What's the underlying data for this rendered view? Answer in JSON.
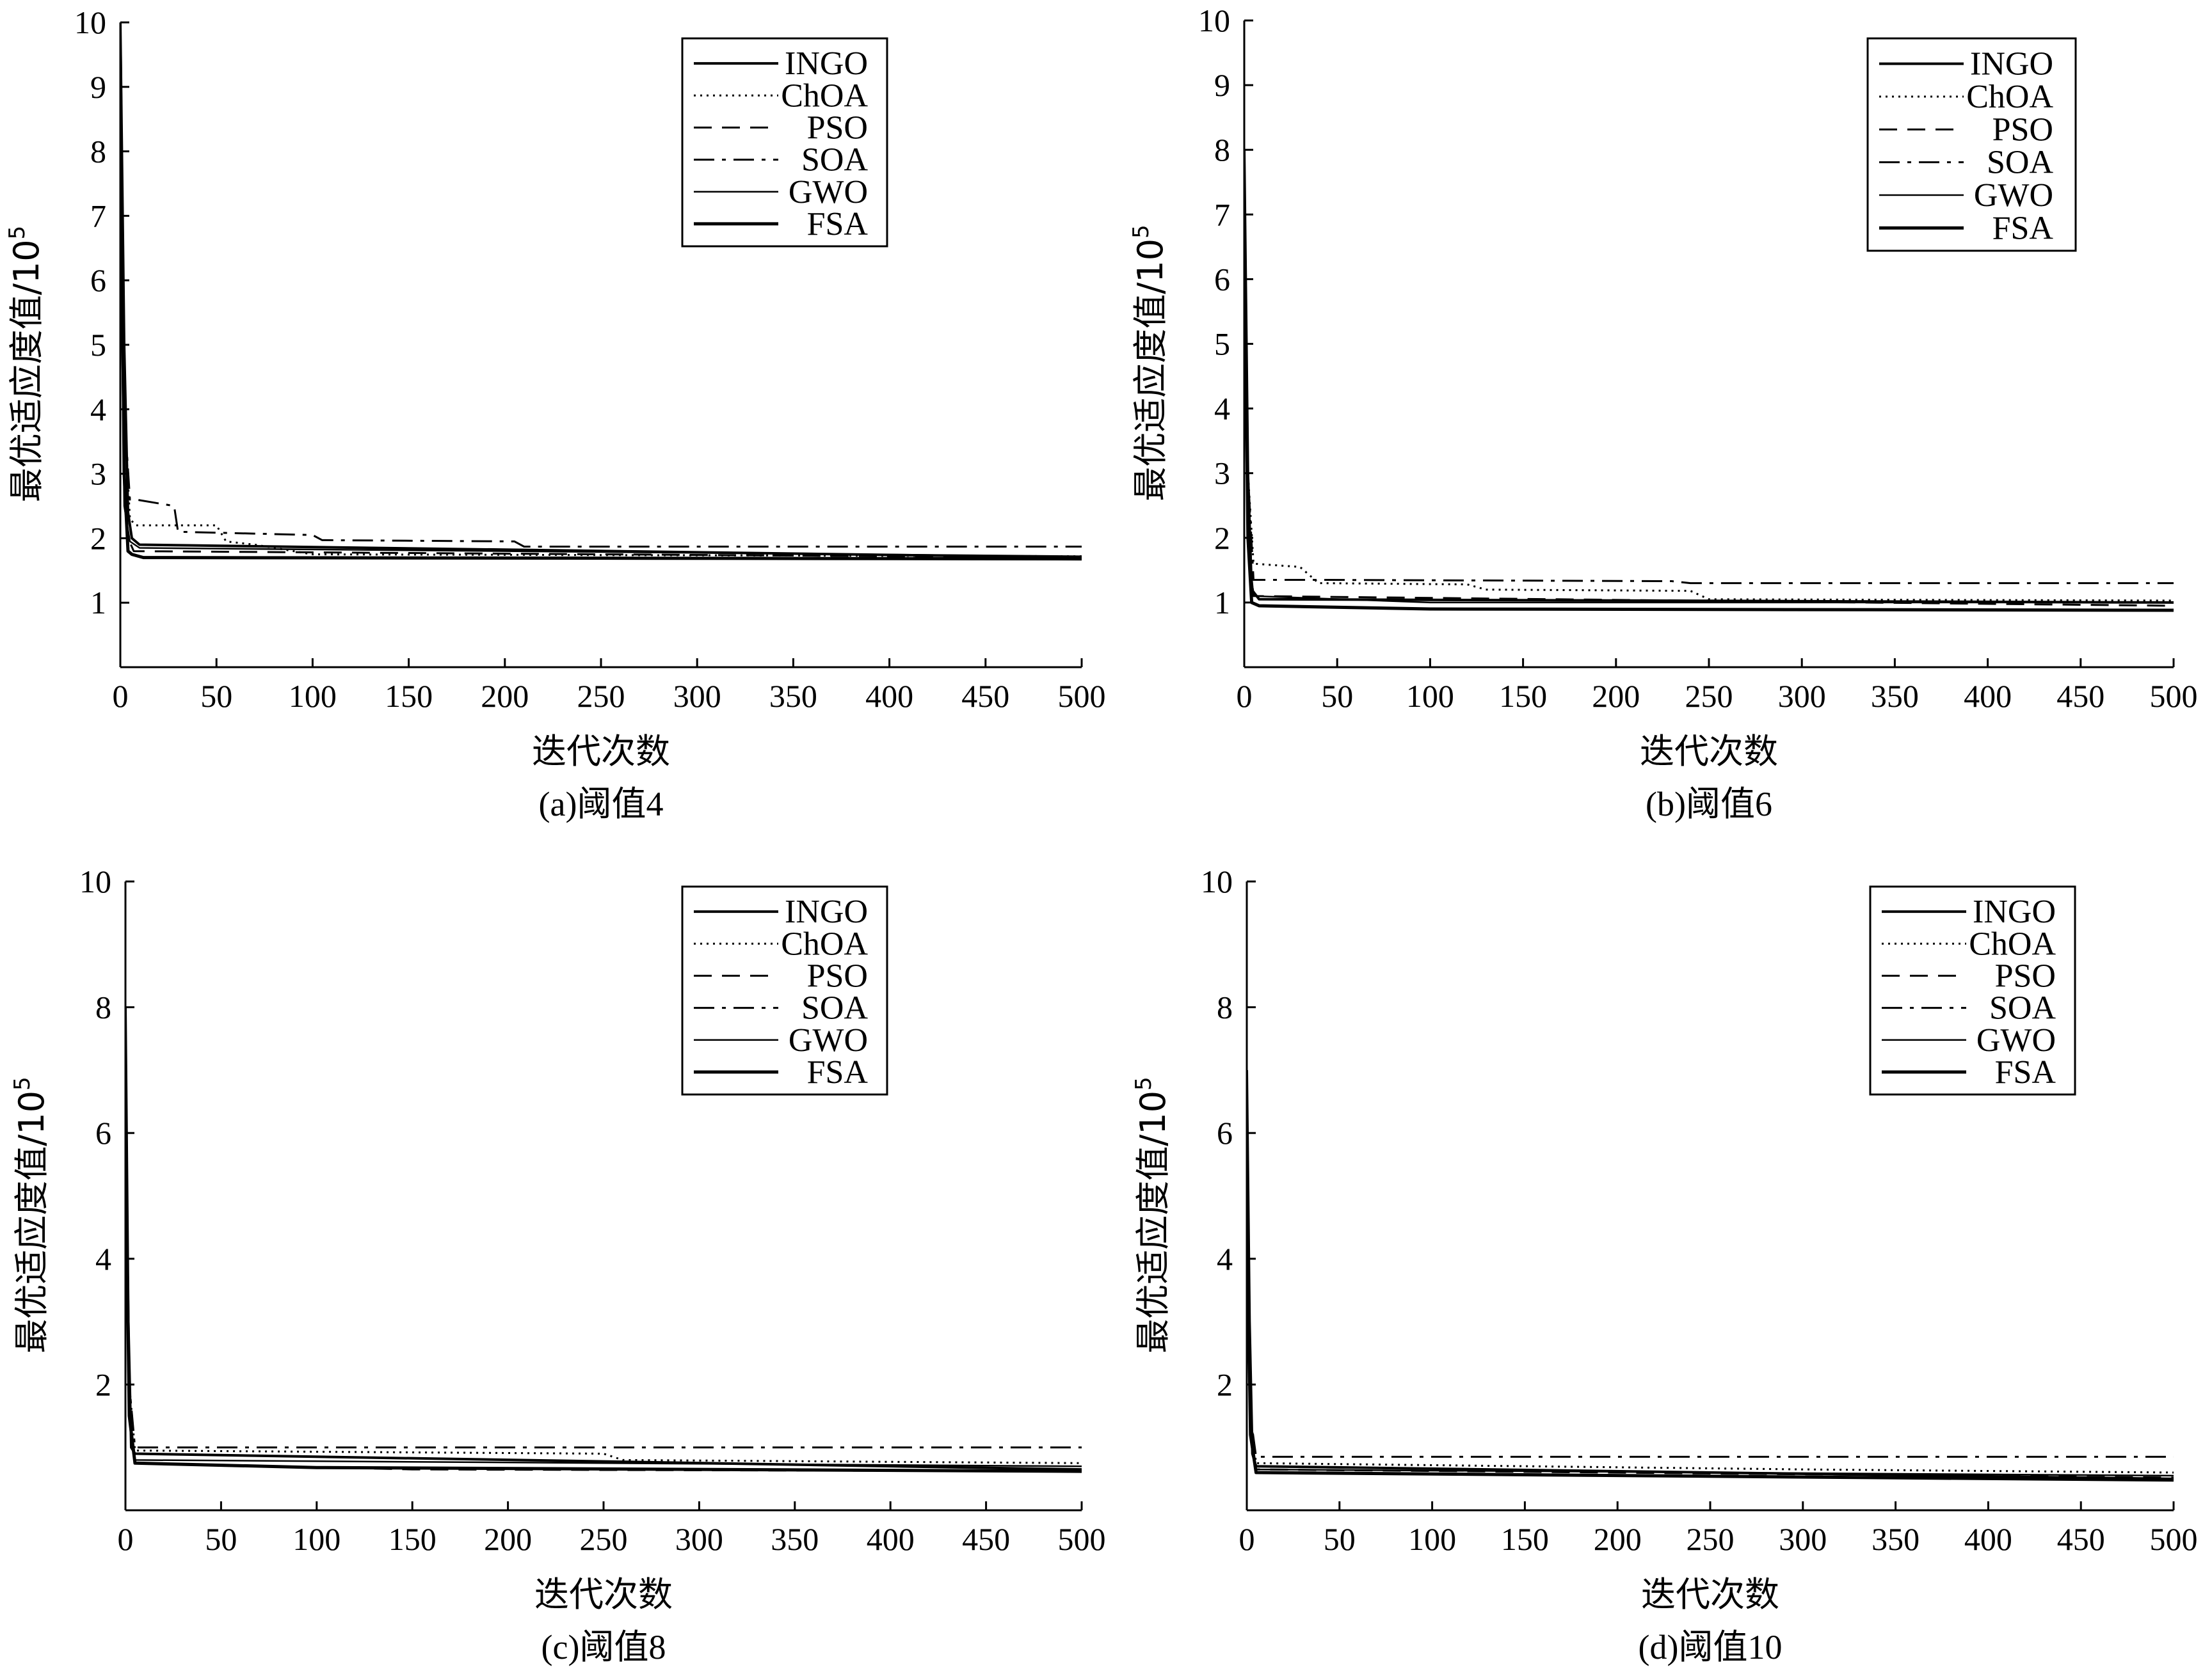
{
  "chart_data": [
    {
      "type": "line",
      "caption": "(a)阈值4",
      "xlabel": "迭代次数",
      "ylabel": "最优适应度值/10",
      "ylabel_exponent": "5",
      "xlim": [
        0,
        500
      ],
      "ylim": [
        0,
        10
      ],
      "xticks": [
        0,
        50,
        100,
        150,
        200,
        250,
        300,
        350,
        400,
        450,
        500
      ],
      "yticks": [
        1,
        2,
        3,
        4,
        5,
        6,
        7,
        8,
        9,
        10
      ],
      "legend_position": "top-right",
      "series": [
        {
          "name": "INGO",
          "style": "solid",
          "width": 4,
          "x": [
            0,
            2,
            4,
            6,
            10,
            500
          ],
          "y": [
            10,
            5,
            2.4,
            2.0,
            1.9,
            1.7
          ]
        },
        {
          "name": "ChOA",
          "style": "dotted",
          "width": 3,
          "x": [
            0,
            2,
            5,
            8,
            50,
            55,
            70,
            100,
            500
          ],
          "y": [
            9,
            4,
            2.3,
            2.2,
            2.2,
            1.95,
            1.9,
            1.75,
            1.72
          ]
        },
        {
          "name": "PSO",
          "style": "dashed",
          "width": 3,
          "x": [
            0,
            2,
            4,
            7,
            500
          ],
          "y": [
            8,
            3,
            2.0,
            1.8,
            1.7
          ]
        },
        {
          "name": "SOA",
          "style": "dashdot",
          "width": 3,
          "x": [
            0,
            2,
            5,
            8,
            28,
            30,
            100,
            105,
            205,
            210,
            500
          ],
          "y": [
            8,
            4,
            2.6,
            2.6,
            2.5,
            2.1,
            2.05,
            1.97,
            1.95,
            1.87,
            1.87
          ]
        },
        {
          "name": "GWO",
          "style": "solid",
          "width": 2.5,
          "x": [
            0,
            2,
            5,
            10,
            500
          ],
          "y": [
            7,
            2.5,
            1.95,
            1.85,
            1.72
          ]
        },
        {
          "name": "FSA",
          "style": "solid",
          "width": 5,
          "x": [
            0,
            2,
            4,
            6,
            12,
            500
          ],
          "y": [
            9.5,
            3,
            1.8,
            1.75,
            1.7,
            1.68
          ]
        }
      ]
    },
    {
      "type": "line",
      "caption": "(b)阈值6",
      "xlabel": "迭代次数",
      "ylabel": "最优适应度值/10",
      "ylabel_exponent": "5",
      "xlim": [
        0,
        500
      ],
      "ylim": [
        0,
        10
      ],
      "xticks": [
        0,
        50,
        100,
        150,
        200,
        250,
        300,
        350,
        400,
        450,
        500
      ],
      "yticks": [
        1,
        2,
        3,
        4,
        5,
        6,
        7,
        8,
        9,
        10
      ],
      "legend_position": "top-right",
      "series": [
        {
          "name": "INGO",
          "style": "solid",
          "width": 4,
          "x": [
            0,
            2,
            4,
            8,
            500
          ],
          "y": [
            8,
            3,
            1.2,
            1.05,
            1.0
          ]
        },
        {
          "name": "ChOA",
          "style": "dotted",
          "width": 3,
          "x": [
            0,
            2,
            5,
            30,
            40,
            120,
            130,
            240,
            250,
            500
          ],
          "y": [
            7,
            3,
            1.6,
            1.55,
            1.3,
            1.28,
            1.2,
            1.18,
            1.05,
            1.03
          ]
        },
        {
          "name": "PSO",
          "style": "dashed",
          "width": 3,
          "x": [
            0,
            2,
            5,
            500
          ],
          "y": [
            6,
            2,
            1.1,
            0.95
          ]
        },
        {
          "name": "SOA",
          "style": "dashdot",
          "width": 3,
          "x": [
            0,
            2,
            5,
            40,
            230,
            240,
            500
          ],
          "y": [
            7,
            3,
            1.35,
            1.35,
            1.33,
            1.3,
            1.3
          ]
        },
        {
          "name": "GWO",
          "style": "solid",
          "width": 2.5,
          "x": [
            0,
            2,
            5,
            100,
            500
          ],
          "y": [
            6,
            2,
            1.1,
            1.0,
            1.0
          ]
        },
        {
          "name": "FSA",
          "style": "solid",
          "width": 5,
          "x": [
            0,
            2,
            4,
            8,
            100,
            500
          ],
          "y": [
            7,
            2,
            1.0,
            0.95,
            0.9,
            0.88
          ]
        }
      ]
    },
    {
      "type": "line",
      "caption": "(c)阈值8",
      "xlabel": "迭代次数",
      "ylabel": "最优适应度值/10",
      "ylabel_exponent": "5",
      "xlim": [
        0,
        500
      ],
      "ylim": [
        0,
        10
      ],
      "xticks": [
        0,
        50,
        100,
        150,
        200,
        250,
        300,
        350,
        400,
        450,
        500
      ],
      "yticks": [
        2,
        4,
        6,
        8,
        10
      ],
      "legend_position": "top-right",
      "series": [
        {
          "name": "INGO",
          "style": "solid",
          "width": 4,
          "x": [
            0,
            1.5,
            3,
            5,
            500
          ],
          "y": [
            8,
            3,
            1.0,
            0.9,
            0.65
          ]
        },
        {
          "name": "ChOA",
          "style": "dotted",
          "width": 3,
          "x": [
            0,
            2,
            5,
            250,
            260,
            500
          ],
          "y": [
            6,
            2,
            0.95,
            0.9,
            0.8,
            0.75
          ]
        },
        {
          "name": "PSO",
          "style": "dashed",
          "width": 3,
          "x": [
            0,
            2,
            5,
            150,
            500
          ],
          "y": [
            5,
            1.5,
            0.75,
            0.65,
            0.62
          ]
        },
        {
          "name": "SOA",
          "style": "dashdot",
          "width": 3,
          "x": [
            0,
            2,
            5,
            500
          ],
          "y": [
            6,
            2,
            1.0,
            1.0
          ]
        },
        {
          "name": "GWO",
          "style": "solid",
          "width": 2.5,
          "x": [
            0,
            2,
            5,
            500
          ],
          "y": [
            5,
            1.5,
            0.8,
            0.7
          ]
        },
        {
          "name": "FSA",
          "style": "solid",
          "width": 5,
          "x": [
            0,
            2,
            5,
            100,
            500
          ],
          "y": [
            6,
            1.5,
            0.75,
            0.68,
            0.62
          ]
        }
      ]
    },
    {
      "type": "line",
      "caption": "(d)阈值10",
      "xlabel": "迭代次数",
      "ylabel": "最优适应度值/10",
      "ylabel_exponent": "5",
      "xlim": [
        0,
        500
      ],
      "ylim": [
        0,
        10
      ],
      "xticks": [
        0,
        50,
        100,
        150,
        200,
        250,
        300,
        350,
        400,
        450,
        500
      ],
      "yticks": [
        2,
        4,
        6,
        8,
        10
      ],
      "legend_position": "top-right",
      "series": [
        {
          "name": "INGO",
          "style": "solid",
          "width": 4,
          "x": [
            0,
            1.5,
            3,
            5,
            500
          ],
          "y": [
            7,
            3,
            0.9,
            0.7,
            0.5
          ]
        },
        {
          "name": "ChOA",
          "style": "dotted",
          "width": 3,
          "x": [
            0,
            2,
            5,
            300,
            500
          ],
          "y": [
            5,
            1.5,
            0.75,
            0.65,
            0.6
          ]
        },
        {
          "name": "PSO",
          "style": "dashed",
          "width": 3,
          "x": [
            0,
            2,
            5,
            500
          ],
          "y": [
            4,
            1.2,
            0.65,
            0.52
          ]
        },
        {
          "name": "SOA",
          "style": "dashdot",
          "width": 3,
          "x": [
            0,
            2,
            5,
            500
          ],
          "y": [
            5,
            1.5,
            0.85,
            0.85
          ]
        },
        {
          "name": "GWO",
          "style": "solid",
          "width": 2.5,
          "x": [
            0,
            2,
            5,
            500
          ],
          "y": [
            4,
            1.2,
            0.65,
            0.55
          ]
        },
        {
          "name": "FSA",
          "style": "solid",
          "width": 5,
          "x": [
            0,
            2,
            5,
            500
          ],
          "y": [
            5,
            1.2,
            0.6,
            0.48
          ]
        }
      ]
    }
  ]
}
